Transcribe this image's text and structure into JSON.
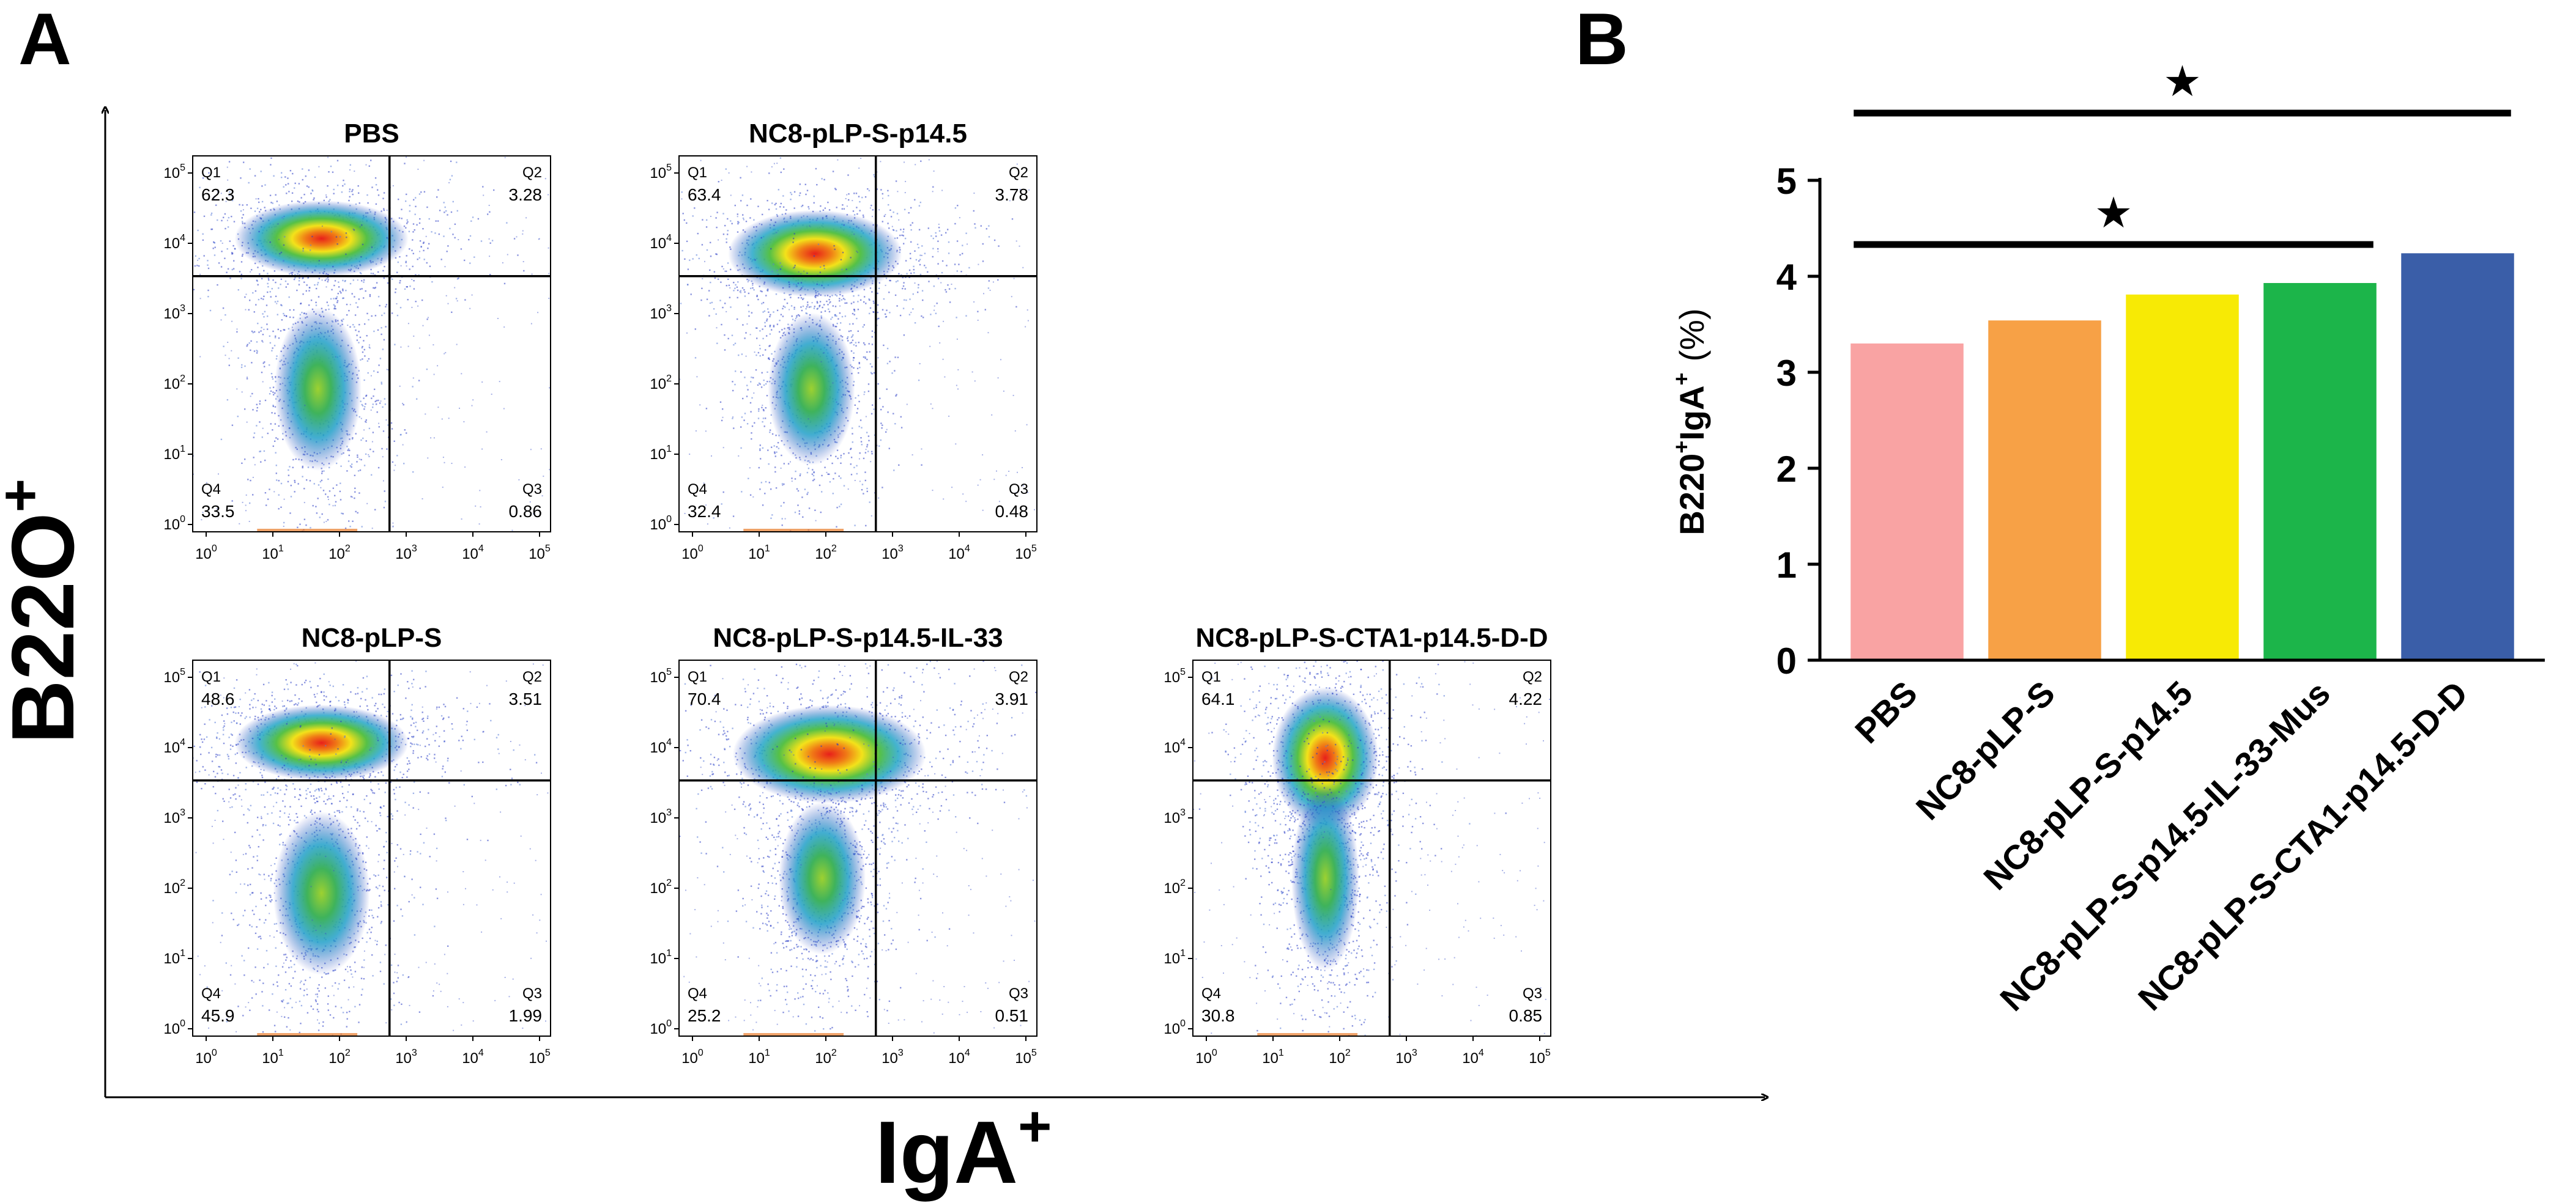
{
  "panels": {
    "a": {
      "letter": "A"
    },
    "b": {
      "letter": "B"
    }
  },
  "flow_axes": {
    "ylabel": "B22O",
    "ylabel_sup": "+",
    "xlabel": "IgA",
    "xlabel_sup": "+"
  },
  "flow_plots": [
    {
      "title": "PBS",
      "q1": "62.3",
      "q2": "3.28",
      "q3": "0.86",
      "q4": "33.5"
    },
    {
      "title": "NC8-pLP-S-p14.5",
      "q1": "63.4",
      "q2": "3.78",
      "q3": "0.48",
      "q4": "32.4"
    },
    {
      "title": "NC8-pLP-S",
      "q1": "48.6",
      "q2": "3.51",
      "q3": "1.99",
      "q4": "45.9"
    },
    {
      "title": "NC8-pLP-S-p14.5-IL-33",
      "q1": "70.4",
      "q2": "3.91",
      "q3": "0.51",
      "q4": "25.2"
    },
    {
      "title": "NC8-pLP-S-CTA1-p14.5-D-D",
      "q1": "64.1",
      "q2": "4.22",
      "q3": "0.85",
      "q4": "30.8"
    }
  ],
  "quadrant_names": {
    "q1": "Q1",
    "q2": "Q2",
    "q3": "Q3",
    "q4": "Q4"
  },
  "flow_ticks": [
    "10",
    "0",
    "1",
    "2",
    "3",
    "4",
    "5"
  ],
  "chart_data": {
    "type": "bar",
    "categories": [
      "PBS",
      "NC8-pLP-S",
      "NC8-pLP-S-p14.5",
      "NC8-pLP-S-p14.5-IL-33-Mus",
      "NC8-pLP-S-CTA1-p14.5-D-D"
    ],
    "values": [
      3.3,
      3.54,
      3.81,
      3.93,
      4.24
    ],
    "colors": [
      "#f9a3a3",
      "#f7a146",
      "#f7ea05",
      "#1cb54a",
      "#3a5ea8"
    ],
    "ylabel_main": "B220",
    "ylabel_sup1": "+",
    "ylabel_mid": "IgA",
    "ylabel_sup2": "+",
    "ylabel_unit": "(%)",
    "ylim": [
      0,
      5
    ],
    "yticks": [
      "0",
      "1",
      "2",
      "3",
      "4",
      "5"
    ],
    "significance": [
      {
        "from": 0,
        "to": 4,
        "symbol": "★"
      },
      {
        "from": 0,
        "to": 3,
        "symbol": "★"
      }
    ]
  }
}
